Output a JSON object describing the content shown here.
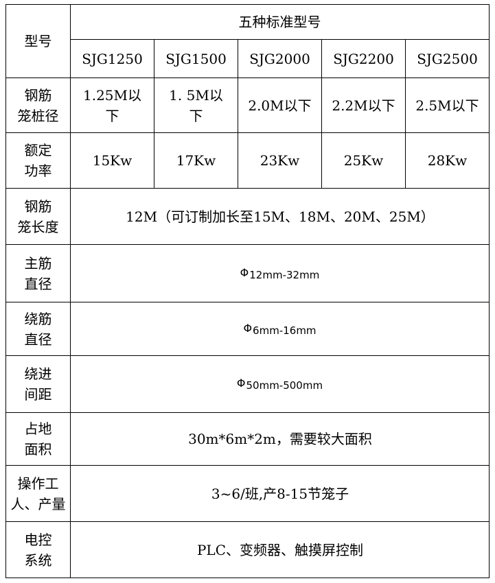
{
  "table": {
    "border_color": "#000000",
    "text_color": "#000000",
    "corner_label": "型号",
    "group_header": "五种标准型号",
    "models": [
      "SJG1250",
      "SJG1500",
      "SJG2000",
      "SJG2200",
      "SJG2500"
    ],
    "matrix_rows": [
      {
        "label": "钢筋\n笼桩径",
        "values": [
          "1.25M以\n下",
          "1. 5M以\n下",
          "2.0M以下",
          "2.2M以下",
          "2.5M以下"
        ]
      },
      {
        "label": "额定\n功率",
        "values": [
          "15Kw",
          "17Kw",
          "23Kw",
          "25Kw",
          "28Kw"
        ]
      }
    ],
    "span_rows": [
      {
        "label": "钢筋\n笼长度",
        "prefix": "",
        "value": "12M（可订制加长至15M、18M、20M、25M）"
      },
      {
        "label": "主筋\n直径",
        "prefix": "Φ",
        "value": "12mm-32mm"
      },
      {
        "label": "绕筋\n直径",
        "prefix": "Φ",
        "value": "6mm-16mm"
      },
      {
        "label": "绕进\n间距",
        "prefix": "Φ",
        "value": "50mm-500mm"
      },
      {
        "label": "占地\n面积",
        "prefix": "",
        "value": "30m*6m*2m，需要较大面积"
      },
      {
        "label": "操作工\n人、产量",
        "prefix": "",
        "value": "3~6/班,产8-15节笼子"
      },
      {
        "label": "电控\n系统",
        "prefix": "",
        "value": "PLC、变频器、触摸屏控制"
      }
    ]
  }
}
